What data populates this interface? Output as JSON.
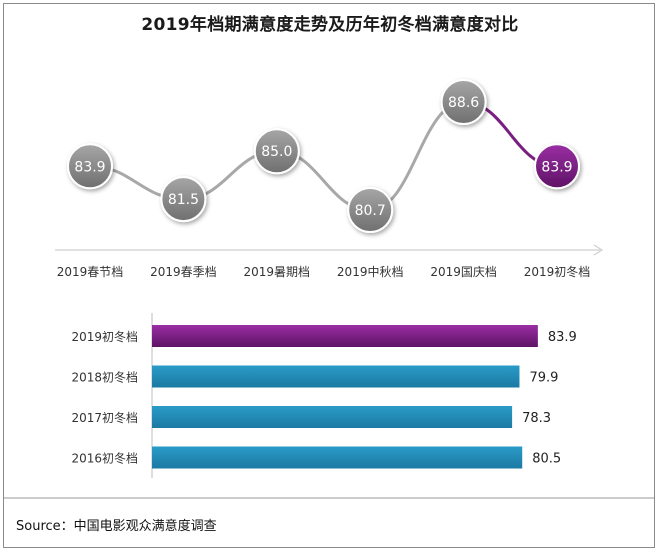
{
  "title": "2019年档期满意度走势及历年初冬档满意度对比",
  "source": "Source：中国电影观众满意度调查",
  "colors": {
    "gray_marker": "#8c8c8c",
    "gray_line": "#a8a8a8",
    "purple": "#7a1f82",
    "teal": "#1e88b4"
  },
  "chart_data": [
    {
      "type": "line",
      "categories": [
        "2019春节档",
        "2019春季档",
        "2019暑期档",
        "2019中秋档",
        "2019国庆档",
        "2019初冬档"
      ],
      "values": [
        83.9,
        81.5,
        85.0,
        80.7,
        88.6,
        83.9
      ],
      "value_labels": [
        "83.9",
        "81.5",
        "85.0",
        "80.7",
        "88.6",
        "83.9"
      ],
      "highlight_index": 5
    },
    {
      "type": "bar",
      "orientation": "horizontal",
      "categories": [
        "2019初冬档",
        "2018初冬档",
        "2017初冬档",
        "2016初冬档"
      ],
      "values": [
        83.9,
        79.9,
        78.3,
        80.5
      ],
      "value_labels": [
        "83.9",
        "79.9",
        "78.3",
        "80.5"
      ],
      "highlight_index": 0
    }
  ]
}
